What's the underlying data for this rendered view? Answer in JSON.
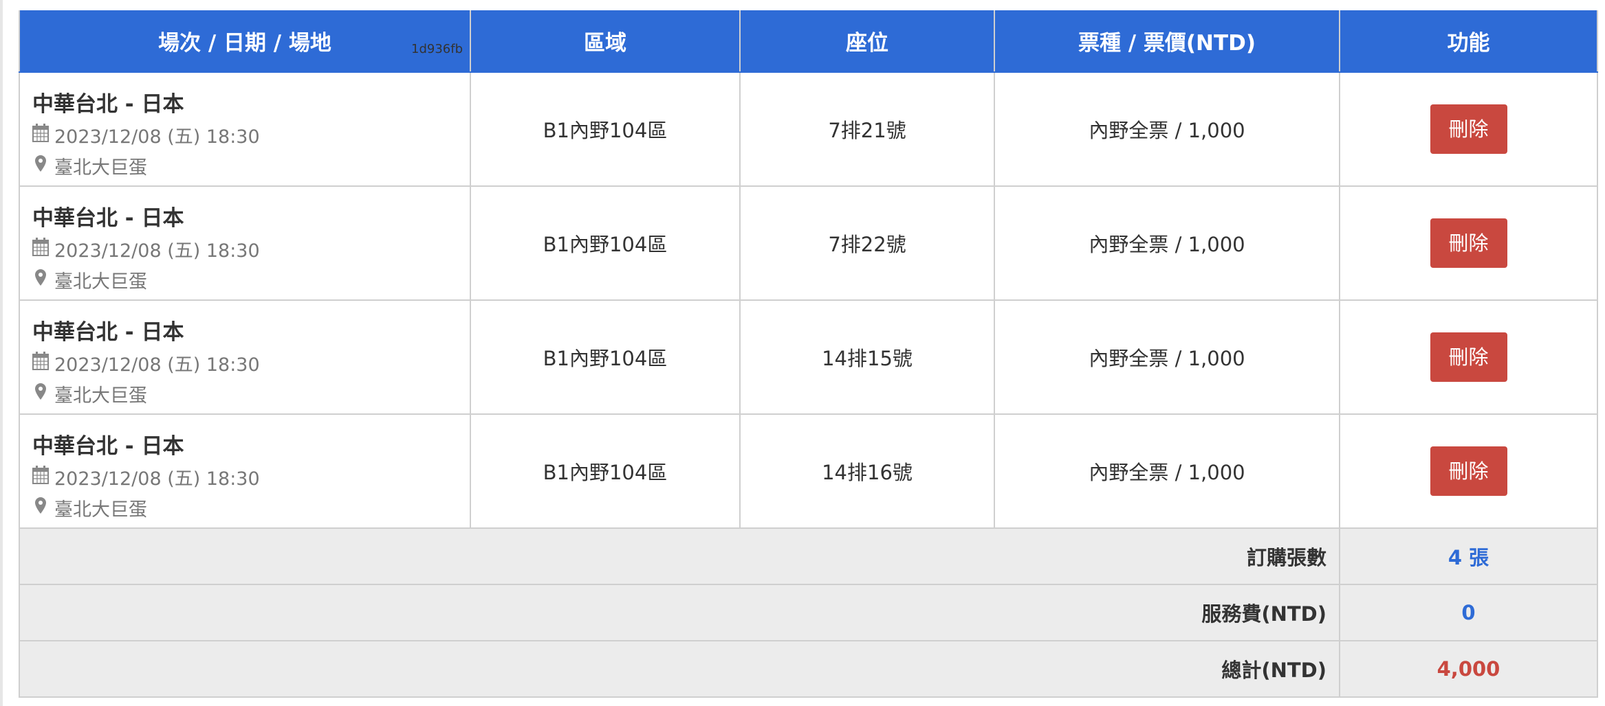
{
  "header": {
    "col_event": "場次 / 日期 / 場地",
    "build_hash": "1d936fb",
    "col_area": "區域",
    "col_seat": "座位",
    "col_ticket": "票種 / 票價(NTD)",
    "col_actions": "功能"
  },
  "rows": [
    {
      "event": "中華台北 - 日本",
      "datetime": "2023/12/08 (五) 18:30",
      "venue": "臺北大巨蛋",
      "area": "B1內野104區",
      "seat": "7排21號",
      "ticket": "內野全票 / 1,000",
      "delete_label": "刪除"
    },
    {
      "event": "中華台北 - 日本",
      "datetime": "2023/12/08 (五) 18:30",
      "venue": "臺北大巨蛋",
      "area": "B1內野104區",
      "seat": "7排22號",
      "ticket": "內野全票 / 1,000",
      "delete_label": "刪除"
    },
    {
      "event": "中華台北 - 日本",
      "datetime": "2023/12/08 (五) 18:30",
      "venue": "臺北大巨蛋",
      "area": "B1內野104區",
      "seat": "14排15號",
      "ticket": "內野全票 / 1,000",
      "delete_label": "刪除"
    },
    {
      "event": "中華台北 - 日本",
      "datetime": "2023/12/08 (五) 18:30",
      "venue": "臺北大巨蛋",
      "area": "B1內野104區",
      "seat": "14排16號",
      "ticket": "內野全票 / 1,000",
      "delete_label": "刪除"
    }
  ],
  "summary": {
    "count_label": "訂購張數",
    "count_value": "4 張",
    "fee_label": "服務費(NTD)",
    "fee_value": "0",
    "total_label": "總計(NTD)",
    "total_value": "4,000"
  },
  "colors": {
    "header": "#2e6bd6",
    "delete": "#c9483f",
    "accent_blue": "#2e6bd6",
    "total_red": "#c9483f"
  },
  "icons": {
    "date": "calendar-icon",
    "venue": "map-marker-icon"
  }
}
